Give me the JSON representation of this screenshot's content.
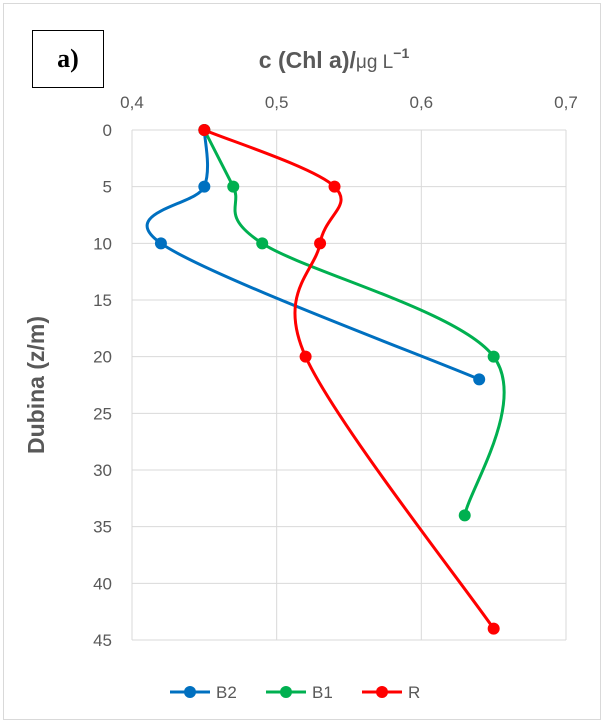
{
  "panel_label": "a)",
  "chart_data": {
    "type": "line",
    "title": "",
    "xlabel_prefix": "c (Chl a)/",
    "xlabel_unit": "μg L",
    "xlabel_exponent": "−1",
    "ylabel": "Dubina (z/m)",
    "xlim": [
      0.4,
      0.7
    ],
    "ylim": [
      0,
      45
    ],
    "x_axis_position": "top",
    "y_reversed": true,
    "grid": true,
    "legend_position": "bottom",
    "x_ticks": [
      {
        "value": 0.4,
        "label": "0,4"
      },
      {
        "value": 0.5,
        "label": "0,5"
      },
      {
        "value": 0.6,
        "label": "0,6"
      },
      {
        "value": 0.7,
        "label": "0,7"
      }
    ],
    "y_ticks": [
      {
        "value": 0,
        "label": "0"
      },
      {
        "value": 5,
        "label": "5"
      },
      {
        "value": 10,
        "label": "10"
      },
      {
        "value": 15,
        "label": "15"
      },
      {
        "value": 20,
        "label": "20"
      },
      {
        "value": 25,
        "label": "25"
      },
      {
        "value": 30,
        "label": "30"
      },
      {
        "value": 35,
        "label": "35"
      },
      {
        "value": 40,
        "label": "40"
      },
      {
        "value": 45,
        "label": "45"
      }
    ],
    "series": [
      {
        "name": "B2",
        "color": "#0070C0",
        "points": [
          [
            0.45,
            0
          ],
          [
            0.45,
            5
          ],
          [
            0.42,
            10
          ],
          [
            0.64,
            22
          ]
        ]
      },
      {
        "name": "B1",
        "color": "#00B050",
        "points": [
          [
            0.45,
            0
          ],
          [
            0.47,
            5
          ],
          [
            0.49,
            10
          ],
          [
            0.65,
            20
          ],
          [
            0.63,
            34
          ]
        ]
      },
      {
        "name": "R",
        "color": "#FF0000",
        "points": [
          [
            0.45,
            0
          ],
          [
            0.54,
            5
          ],
          [
            0.53,
            10
          ],
          [
            0.52,
            20
          ],
          [
            0.65,
            44
          ]
        ]
      }
    ]
  }
}
